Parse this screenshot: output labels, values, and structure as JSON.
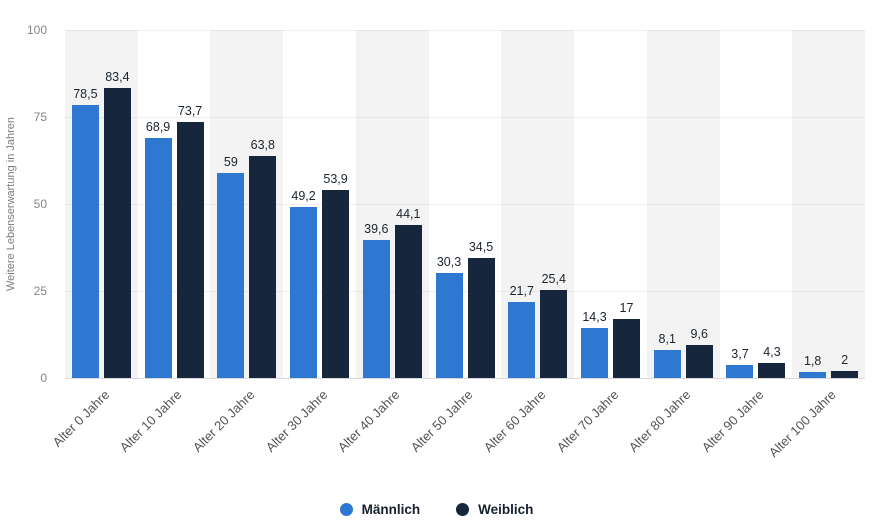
{
  "chart_data": {
    "type": "bar",
    "ylabel": "Weitere Lebenserwartung in Jahren",
    "categories": [
      "Alter 0 Jahre",
      "Alter 10 Jahre",
      "Alter 20 Jahre",
      "Alter 30 Jahre",
      "Alter 40 Jahre",
      "Alter 50 Jahre",
      "Alter 60 Jahre",
      "Alter 70 Jahre",
      "Alter 80 Jahre",
      "Alter 90 Jahre",
      "Alter 100 Jahre"
    ],
    "series": [
      {
        "name": "Männlich",
        "color": "#2e78d2",
        "values": [
          78.5,
          68.9,
          59,
          49.2,
          39.6,
          30.3,
          21.7,
          14.3,
          8.1,
          3.7,
          1.8
        ]
      },
      {
        "name": "Weiblich",
        "color": "#16263c",
        "values": [
          83.4,
          73.7,
          63.8,
          53.9,
          44.1,
          34.5,
          25.4,
          17,
          9.6,
          4.3,
          2
        ]
      }
    ],
    "yticks": [
      0,
      25,
      50,
      75,
      100
    ],
    "ylim": [
      0,
      100
    ],
    "value_labels": true,
    "value_label_format": "decimal-comma",
    "grid": "horizontal-light",
    "background_stripes": "alternating-per-category",
    "legend_position": "bottom-center"
  }
}
